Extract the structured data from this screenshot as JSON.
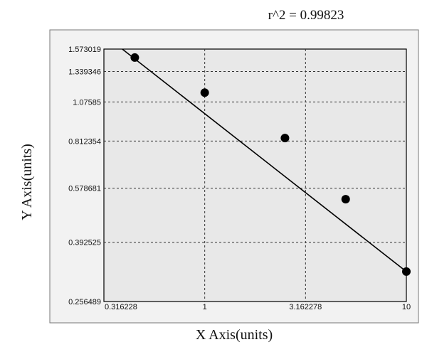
{
  "chart_data": {
    "type": "scatter",
    "annotation": "r^2  =  0.99823",
    "xlabel": "X Axis(units)",
    "ylabel": "Y Axis(units)",
    "x_scale": "log",
    "y_scale": "log",
    "xlim": [
      0.316228,
      10
    ],
    "ylim": [
      0.256489,
      1.573019
    ],
    "x_ticks": [
      "0.316228",
      "1",
      "3.162278",
      "10"
    ],
    "y_ticks": [
      "1.573019",
      "1.339346",
      "1.07585",
      "0.812354",
      "0.578681",
      "0.392525",
      "0.256489"
    ],
    "grid": true,
    "points": [
      {
        "x": 0.45,
        "y": 1.48
      },
      {
        "x": 1.0,
        "y": 1.15
      },
      {
        "x": 2.5,
        "y": 0.83
      },
      {
        "x": 5.0,
        "y": 0.535
      },
      {
        "x": 10.0,
        "y": 0.318
      }
    ],
    "fit_line": {
      "x": [
        0.39,
        10.0
      ],
      "y": [
        1.573019,
        0.318
      ]
    },
    "colors": {
      "plot_bg": "#e8e8e8",
      "outer_bg": "#f2f2f2",
      "marks": "#000000"
    }
  }
}
